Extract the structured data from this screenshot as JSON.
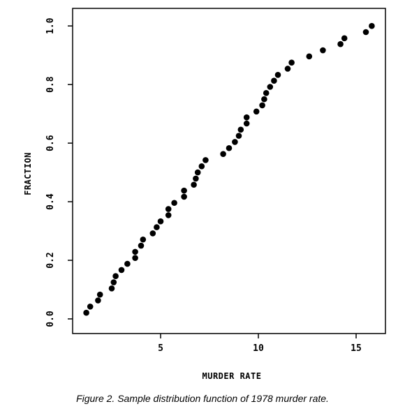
{
  "chart_data": {
    "type": "scatter",
    "xlabel": "MURDER RATE",
    "ylabel": "FRACTION",
    "xlim": [
      0.5,
      16.5
    ],
    "ylim": [
      -0.05,
      1.06
    ],
    "xticks": [
      5,
      10,
      15
    ],
    "yticks": [
      0.0,
      0.2,
      0.4,
      0.6,
      0.8,
      1.0
    ],
    "xtick_labels": [
      "5",
      "10",
      "15"
    ],
    "ytick_labels": [
      "0.0",
      "0.2",
      "0.4",
      "0.6",
      "0.8",
      "1.0"
    ],
    "grid": false,
    "point_color": "#000000",
    "points": [
      {
        "x": 1.2,
        "y": 0.021
      },
      {
        "x": 1.4,
        "y": 0.042
      },
      {
        "x": 1.8,
        "y": 0.063
      },
      {
        "x": 1.9,
        "y": 0.083
      },
      {
        "x": 2.5,
        "y": 0.104
      },
      {
        "x": 2.6,
        "y": 0.125
      },
      {
        "x": 2.7,
        "y": 0.146
      },
      {
        "x": 3.0,
        "y": 0.167
      },
      {
        "x": 3.3,
        "y": 0.188
      },
      {
        "x": 3.7,
        "y": 0.208
      },
      {
        "x": 3.7,
        "y": 0.229
      },
      {
        "x": 4.0,
        "y": 0.25
      },
      {
        "x": 4.1,
        "y": 0.271
      },
      {
        "x": 4.6,
        "y": 0.292
      },
      {
        "x": 4.8,
        "y": 0.313
      },
      {
        "x": 5.0,
        "y": 0.333
      },
      {
        "x": 5.4,
        "y": 0.354
      },
      {
        "x": 5.4,
        "y": 0.375
      },
      {
        "x": 5.7,
        "y": 0.396
      },
      {
        "x": 6.2,
        "y": 0.417
      },
      {
        "x": 6.2,
        "y": 0.438
      },
      {
        "x": 6.7,
        "y": 0.458
      },
      {
        "x": 6.8,
        "y": 0.479
      },
      {
        "x": 6.9,
        "y": 0.5
      },
      {
        "x": 7.1,
        "y": 0.521
      },
      {
        "x": 7.3,
        "y": 0.542
      },
      {
        "x": 8.2,
        "y": 0.563
      },
      {
        "x": 8.5,
        "y": 0.583
      },
      {
        "x": 8.8,
        "y": 0.604
      },
      {
        "x": 9.0,
        "y": 0.625
      },
      {
        "x": 9.1,
        "y": 0.646
      },
      {
        "x": 9.4,
        "y": 0.667
      },
      {
        "x": 9.4,
        "y": 0.688
      },
      {
        "x": 9.9,
        "y": 0.708
      },
      {
        "x": 10.2,
        "y": 0.729
      },
      {
        "x": 10.3,
        "y": 0.75
      },
      {
        "x": 10.4,
        "y": 0.771
      },
      {
        "x": 10.6,
        "y": 0.792
      },
      {
        "x": 10.8,
        "y": 0.813
      },
      {
        "x": 11.0,
        "y": 0.833
      },
      {
        "x": 11.5,
        "y": 0.854
      },
      {
        "x": 11.7,
        "y": 0.875
      },
      {
        "x": 12.6,
        "y": 0.896
      },
      {
        "x": 13.3,
        "y": 0.917
      },
      {
        "x": 14.2,
        "y": 0.938
      },
      {
        "x": 14.4,
        "y": 0.958
      },
      {
        "x": 15.5,
        "y": 0.979
      },
      {
        "x": 15.8,
        "y": 1.0
      }
    ]
  },
  "caption": "Figure 2. Sample distribution function of 1978 murder rate."
}
